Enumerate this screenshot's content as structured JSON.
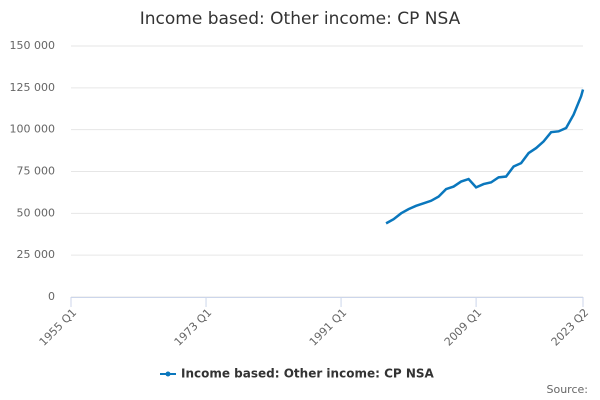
{
  "chart_data": {
    "type": "line",
    "title": "Income based: Other income: CP NSA",
    "source": "Source:",
    "x": [
      1997,
      1998,
      1999,
      2000,
      2001,
      2002,
      2003,
      2004,
      2005,
      2006,
      2007,
      2008,
      2009,
      2010,
      2011,
      2012,
      2013,
      2014,
      2015,
      2016,
      2017,
      2018,
      2019,
      2020,
      2021,
      2022,
      2023,
      2023.25
    ],
    "series": [
      {
        "name": "Income based: Other income: CP NSA",
        "color": "#0a77bd",
        "values": [
          44000,
          46500,
          50000,
          52500,
          54500,
          56000,
          57500,
          60000,
          64500,
          66000,
          69000,
          70500,
          65500,
          67500,
          68500,
          71500,
          72000,
          78000,
          80000,
          86000,
          89000,
          93000,
          98500,
          99000,
          101000,
          109000,
          120000,
          124000
        ]
      }
    ],
    "xlim": [
      1955,
      2023.25
    ],
    "xticks": [
      {
        "value": 1955,
        "label": "1955 Q1"
      },
      {
        "value": 1973,
        "label": "1973 Q1"
      },
      {
        "value": 1991,
        "label": "1991 Q1"
      },
      {
        "value": 2009,
        "label": "2009 Q1"
      },
      {
        "value": 2023.25,
        "label": "2023 Q2"
      }
    ],
    "ylim": [
      0,
      150000
    ],
    "yticks": [
      0,
      {
        "value": 25000,
        "label": "25 000"
      },
      {
        "value": 50000,
        "label": "50 000"
      },
      {
        "value": 75000,
        "label": "75 000"
      },
      {
        "value": 100000,
        "label": "100 000"
      },
      {
        "value": 125000,
        "label": "125 000"
      },
      {
        "value": 150000,
        "label": "150 000"
      }
    ],
    "grid": true
  }
}
